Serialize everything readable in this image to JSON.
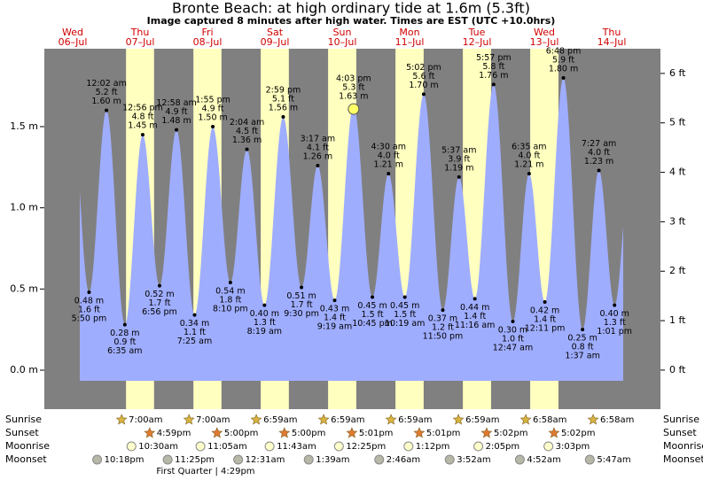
{
  "chart_data": {
    "type": "tide",
    "title": "Bronte Beach: at high  ordinary tide at 1.6m (5.3ft)",
    "subtitle": "Image captured 8 minutes after high water. Times are EST (UTC +10.0hrs)",
    "row_labels": {
      "sunrise": "Sunrise",
      "sunset": "Sunset",
      "moonrise": "Moonrise",
      "moonset": "Moonset"
    },
    "moon_phase": "First Quarter | 4:29pm",
    "ylim": [
      -0.24,
      1.98
    ],
    "yticks": [
      {
        "value": 0,
        "label": "0.0 m"
      },
      {
        "value": 0.5,
        "label": "0.5 m"
      },
      {
        "value": 1,
        "label": "1.0 m"
      },
      {
        "value": 1.5,
        "label": "1.5 m"
      }
    ],
    "y2lim": [
      -0.79,
      6.5
    ],
    "y2ticks": [
      {
        "value": 0,
        "label": "0 ft"
      },
      {
        "value": 1,
        "label": "1 ft"
      },
      {
        "value": 2,
        "label": "2 ft"
      },
      {
        "value": 3,
        "label": "3 ft"
      },
      {
        "value": 4,
        "label": "4 ft"
      },
      {
        "value": 5,
        "label": "5 ft"
      },
      {
        "value": 6,
        "label": "6 ft"
      }
    ],
    "days": [
      {
        "name": "Wed",
        "date": "06–Jul",
        "sunrise": null,
        "sunset": null,
        "moonrise": null,
        "moonset": "10:18pm",
        "tides": [
          {
            "time": "5:50 pm",
            "m": 0.48,
            "m_label": "0.48 m",
            "ft": 1.6,
            "ft_label": "1.6 ft"
          }
        ]
      },
      {
        "name": "Thu",
        "date": "07–Jul",
        "sunrise": "7:00am",
        "sunset": "4:59pm",
        "moonrise": "10:30am",
        "moonset": "11:25pm",
        "tides": [
          {
            "time": "12:02 am",
            "m": 1.6,
            "m_label": "1.60 m",
            "ft": 5.2,
            "ft_label": "5.2 ft"
          },
          {
            "time": "6:35 am",
            "m": 0.28,
            "m_label": "0.28 m",
            "ft": 0.9,
            "ft_label": "0.9 ft"
          },
          {
            "time": "12:56 pm",
            "m": 1.45,
            "m_label": "1.45 m",
            "ft": 4.8,
            "ft_label": "4.8 ft"
          },
          {
            "time": "6:56 pm",
            "m": 0.52,
            "m_label": "0.52 m",
            "ft": 1.7,
            "ft_label": "1.7 ft"
          }
        ]
      },
      {
        "name": "Fri",
        "date": "08–Jul",
        "sunrise": "7:00am",
        "sunset": "5:00pm",
        "moonrise": "11:05am",
        "moonset": null,
        "tides": [
          {
            "time": "12:58 am",
            "m": 1.48,
            "m_label": "1.48 m",
            "ft": 4.9,
            "ft_label": "4.9 ft"
          },
          {
            "time": "7:25 am",
            "m": 0.34,
            "m_label": "0.34 m",
            "ft": 1.1,
            "ft_label": "1.1 ft"
          },
          {
            "time": "1:55 pm",
            "m": 1.5,
            "m_label": "1.50 m",
            "ft": 4.9,
            "ft_label": "4.9 ft"
          },
          {
            "time": "8:10 pm",
            "m": 0.54,
            "m_label": "0.54 m",
            "ft": 1.8,
            "ft_label": "1.8 ft"
          }
        ]
      },
      {
        "name": "Sat",
        "date": "09–Jul",
        "sunrise": "6:59am",
        "sunset": "5:00pm",
        "moonrise": "11:43am",
        "moonset": "12:31am",
        "tides": [
          {
            "time": "2:04 am",
            "m": 1.36,
            "m_label": "1.36 m",
            "ft": 4.5,
            "ft_label": "4.5 ft"
          },
          {
            "time": "8:19 am",
            "m": 0.4,
            "m_label": "0.40 m",
            "ft": 1.3,
            "ft_label": "1.3 ft"
          },
          {
            "time": "2:59 pm",
            "m": 1.56,
            "m_label": "1.56 m",
            "ft": 5.1,
            "ft_label": "5.1 ft"
          },
          {
            "time": "9:30 pm",
            "m": 0.51,
            "m_label": "0.51 m",
            "ft": 1.7,
            "ft_label": "1.7 ft"
          }
        ]
      },
      {
        "name": "Sun",
        "date": "10–Jul",
        "sunrise": "6:59am",
        "sunset": "5:01pm",
        "moonrise": "12:25pm",
        "moonset": "1:39am",
        "tides": [
          {
            "time": "3:17 am",
            "m": 1.26,
            "m_label": "1.26 m",
            "ft": 4.1,
            "ft_label": "4.1 ft"
          },
          {
            "time": "9:19 am",
            "m": 0.43,
            "m_label": "0.43 m",
            "ft": 1.4,
            "ft_label": "1.4 ft"
          },
          {
            "time": "4:03 pm",
            "m": 1.63,
            "m_label": "1.63 m",
            "ft": 5.3,
            "ft_label": "5.3 ft"
          },
          {
            "time": "10:45 pm",
            "m": 0.45,
            "m_label": "0.45 m",
            "ft": 1.5,
            "ft_label": "1.5 ft"
          }
        ]
      },
      {
        "name": "Mon",
        "date": "11–Jul",
        "sunrise": "6:59am",
        "sunset": "5:01pm",
        "moonrise": "1:12pm",
        "moonset": "2:46am",
        "tides": [
          {
            "time": "4:30 am",
            "m": 1.21,
            "m_label": "1.21 m",
            "ft": 4.0,
            "ft_label": "4.0 ft"
          },
          {
            "time": "10:19 am",
            "m": 0.45,
            "m_label": "0.45 m",
            "ft": 1.5,
            "ft_label": "1.5 ft"
          },
          {
            "time": "5:02 pm",
            "m": 1.7,
            "m_label": "1.70 m",
            "ft": 5.6,
            "ft_label": "5.6 ft"
          },
          {
            "time": "11:50 pm",
            "m": 0.37,
            "m_label": "0.37 m",
            "ft": 1.2,
            "ft_label": "1.2 ft"
          }
        ]
      },
      {
        "name": "Tue",
        "date": "12–Jul",
        "sunrise": "6:59am",
        "sunset": "5:02pm",
        "moonrise": "2:05pm",
        "moonset": "3:52am",
        "tides": [
          {
            "time": "5:37 am",
            "m": 1.19,
            "m_label": "1.19 m",
            "ft": 3.9,
            "ft_label": "3.9 ft"
          },
          {
            "time": "11:16 am",
            "m": 0.44,
            "m_label": "0.44 m",
            "ft": 1.4,
            "ft_label": "1.4 ft"
          },
          {
            "time": "5:57 pm",
            "m": 1.76,
            "m_label": "1.76 m",
            "ft": 5.8,
            "ft_label": "5.8 ft"
          }
        ]
      },
      {
        "name": "Wed",
        "date": "13–Jul",
        "sunrise": "6:58am",
        "sunset": "5:02pm",
        "moonrise": "3:03pm",
        "moonset": "4:52am",
        "tides": [
          {
            "time": "12:47 am",
            "m": 0.3,
            "m_label": "0.30 m",
            "ft": 1.0,
            "ft_label": "1.0 ft"
          },
          {
            "time": "6:35 am",
            "m": 1.21,
            "m_label": "1.21 m",
            "ft": 4.0,
            "ft_label": "4.0 ft"
          },
          {
            "time": "12:11 pm",
            "m": 0.42,
            "m_label": "0.42 m",
            "ft": 1.4,
            "ft_label": "1.4 ft"
          },
          {
            "time": "6:48 pm",
            "m": 1.8,
            "m_label": "1.80 m",
            "ft": 5.9,
            "ft_label": "5.9 ft"
          }
        ]
      },
      {
        "name": "Thu",
        "date": "14–Jul",
        "sunrise": "6:58am",
        "sunset": null,
        "moonrise": null,
        "moonset": "5:47am",
        "tides": [
          {
            "time": "1:37 am",
            "m": 0.25,
            "m_label": "0.25 m",
            "ft": 0.8,
            "ft_label": "0.8 ft"
          },
          {
            "time": "7:27 am",
            "m": 1.23,
            "m_label": "1.23 m",
            "ft": 4.0,
            "ft_label": "4.0 ft"
          },
          {
            "time": "1:01 pm",
            "m": 0.4,
            "m_label": "0.40 m",
            "ft": 1.3,
            "ft_label": "1.3 ft"
          }
        ]
      }
    ]
  }
}
